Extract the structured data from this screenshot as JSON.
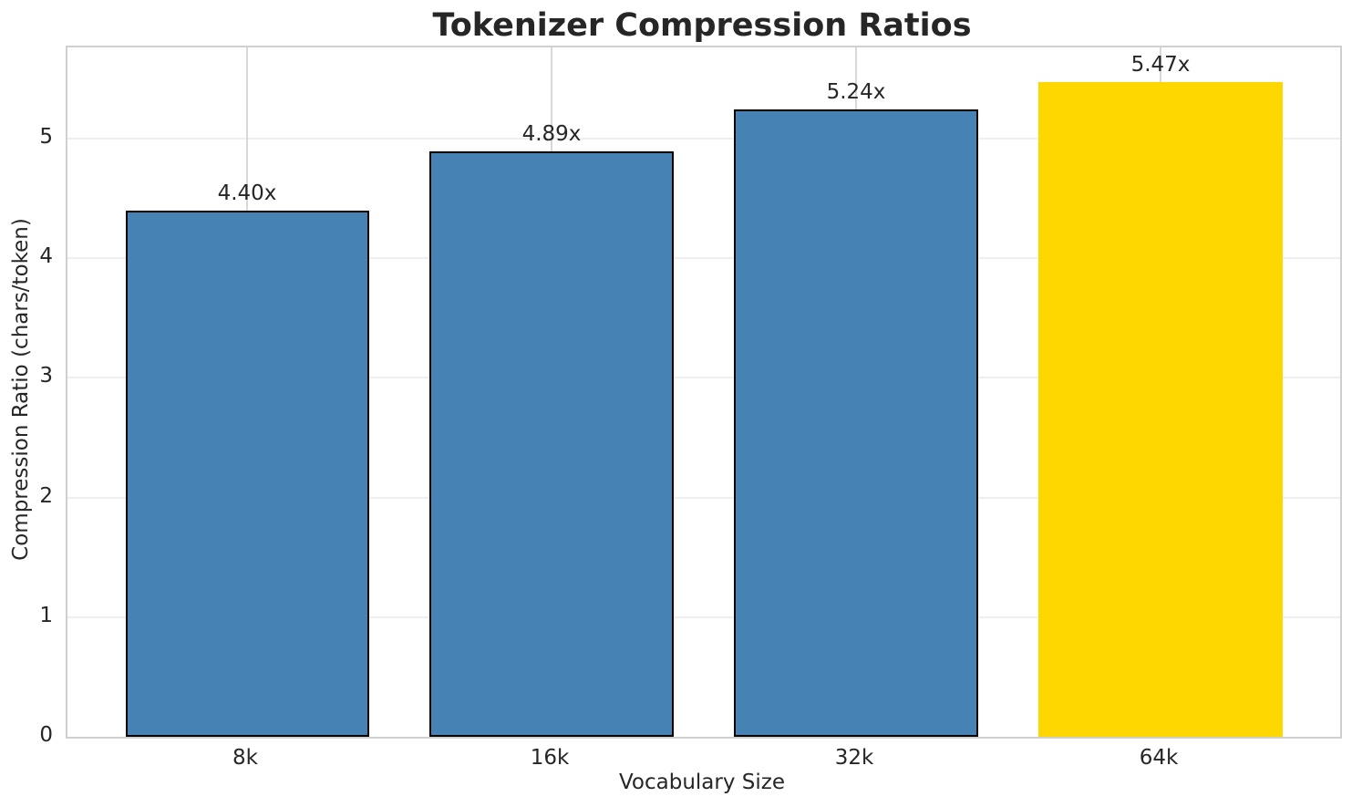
{
  "chart_data": {
    "type": "bar",
    "title": "Tokenizer Compression Ratios",
    "xlabel": "Vocabulary Size",
    "ylabel": "Compression Ratio (chars/token)",
    "categories": [
      "8k",
      "16k",
      "32k",
      "64k"
    ],
    "values": [
      4.4,
      4.89,
      5.24,
      5.47
    ],
    "bar_labels": [
      "4.40x",
      "4.89x",
      "5.24x",
      "5.47x"
    ],
    "bar_colors": [
      "#4682B4",
      "#4682B4",
      "#4682B4",
      "#FFD700"
    ],
    "bar_edge_colors": [
      "#000000",
      "#000000",
      "#000000",
      "none"
    ],
    "bar_width": 0.8,
    "xlim": [
      -0.59,
      3.59
    ],
    "ylim": [
      0,
      5.76
    ],
    "yticks": [
      0,
      1,
      2,
      3,
      4,
      5
    ],
    "grid": true,
    "legend": false,
    "grid_color_horizontal": "#efefef",
    "grid_color_vertical": "#d8d8d8",
    "spine_color": "#cfcfcf",
    "text_color": "#262626",
    "title_color": "#262626"
  }
}
